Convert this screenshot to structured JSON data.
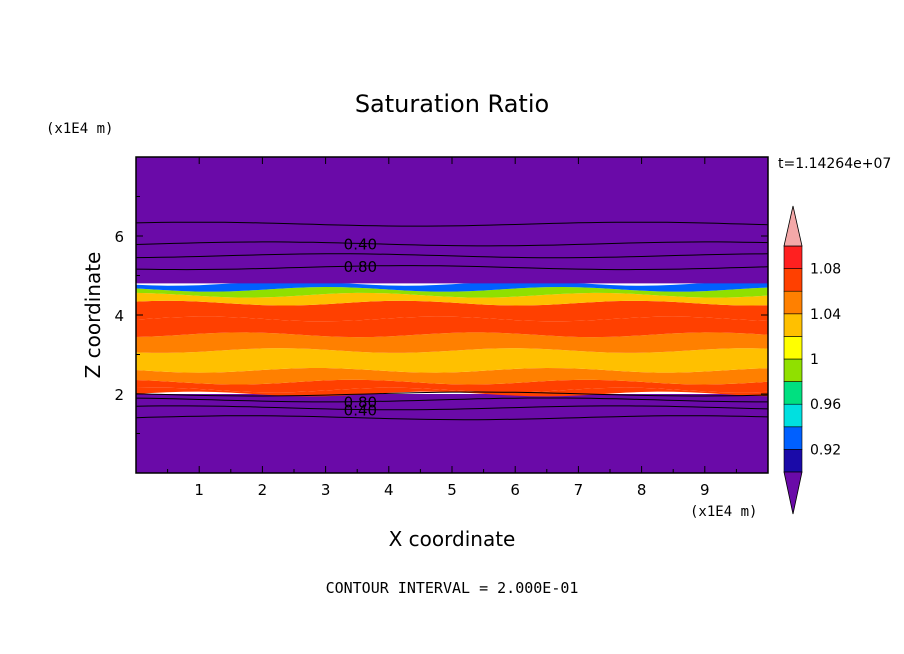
{
  "chart_data": {
    "type": "heatmap",
    "title": "Saturation Ratio",
    "xlabel": "X coordinate",
    "ylabel": "Z coordinate",
    "x_unit": "(x1E4 m)",
    "y_unit": "(x1E4 m)",
    "time_label": "t=1.14264e+07",
    "footer": "CONTOUR INTERVAL = 2.000E-01",
    "xlim": [
      0,
      10
    ],
    "ylim": [
      0,
      8
    ],
    "x_ticks": [
      "1",
      "2",
      "3",
      "4",
      "5",
      "6",
      "7",
      "8",
      "9"
    ],
    "y_ticks": [
      "2",
      "4",
      "6"
    ],
    "colorbar": {
      "min": 0.9,
      "max": 1.1,
      "step": 0.02,
      "labels": [
        "0.92",
        "0.96",
        "1",
        "1.04",
        "1.08"
      ],
      "colors": [
        "#6a0aa8",
        "#1a0aa8",
        "#0060ff",
        "#00e0e0",
        "#00e080",
        "#90e000",
        "#ffff00",
        "#ffc000",
        "#ff8000",
        "#ff4000",
        "#ff2020",
        "#f4a8a8"
      ]
    },
    "bands": [
      {
        "z0": 0.0,
        "z1": 2.0,
        "value": "below"
      },
      {
        "z0": 2.0,
        "z1": 2.1,
        "value": 1.07
      },
      {
        "z0": 2.1,
        "z1": 2.3,
        "value": 1.06
      },
      {
        "z0": 2.3,
        "z1": 2.6,
        "value": 1.04
      },
      {
        "z0": 2.6,
        "z1": 3.1,
        "value": 1.03
      },
      {
        "z0": 3.1,
        "z1": 3.5,
        "value": 1.05
      },
      {
        "z0": 3.5,
        "z1": 3.9,
        "value": 1.06
      },
      {
        "z0": 3.9,
        "z1": 4.3,
        "value": 1.07
      },
      {
        "z0": 4.3,
        "z1": 4.5,
        "value": 1.02
      },
      {
        "z0": 4.5,
        "z1": 4.65,
        "value": 0.99
      },
      {
        "z0": 4.65,
        "z1": 4.8,
        "value": 0.94
      },
      {
        "z0": 4.8,
        "z1": 8.0,
        "value": "below"
      }
    ],
    "contours": [
      {
        "z": 1.4,
        "label": ""
      },
      {
        "z": 1.65,
        "label": "0.40"
      },
      {
        "z": 1.85,
        "label": "0.80"
      },
      {
        "z": 2.0,
        "label": ""
      },
      {
        "z": 5.2,
        "label": "0.80"
      },
      {
        "z": 5.5,
        "label": ""
      },
      {
        "z": 5.8,
        "label": "0.40"
      },
      {
        "z": 6.3,
        "label": ""
      }
    ]
  }
}
